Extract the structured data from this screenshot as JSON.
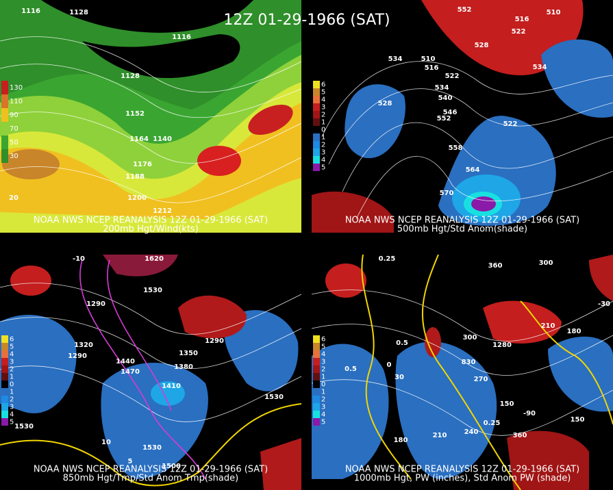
{
  "title": "12Z 01-29-1966 (SAT)",
  "panels": [
    {
      "source": "NOAA NWS NCEP REANALYSIS 12Z 01-29-1966 (SAT)",
      "caption": "200mb Hgt/Wind(kts)",
      "scale": [
        "130",
        "110",
        "90",
        "70",
        "50",
        "30"
      ],
      "labels": [
        "1116",
        "1128",
        "1116",
        "1128",
        "1152",
        "1164",
        "1140",
        "1176",
        "1188",
        "1200",
        "1212",
        "20"
      ]
    },
    {
      "source": "NOAA NWS NCEP REANALYSIS 12Z 01-29-1966 (SAT)",
      "caption": "500mb Hgt/Std Anom(shade)",
      "scale": [
        "6",
        "5",
        "4",
        "3",
        "2",
        "1",
        "0",
        "1",
        "2",
        "3",
        "4",
        "5"
      ],
      "labels": [
        "552",
        "516",
        "510",
        "534",
        "510",
        "516",
        "522",
        "528",
        "522",
        "534",
        "534",
        "540",
        "528",
        "546",
        "552",
        "558",
        "564",
        "570",
        "522"
      ]
    },
    {
      "source": "NOAA NWS NCEP REANALYSIS 12Z 01-29-1966 (SAT)",
      "caption": "850mb Hgt/Tmp/Std Anom Tmp(shade)",
      "scale": [
        "6",
        "5",
        "4",
        "3",
        "2",
        "1",
        "0",
        "1",
        "2",
        "3",
        "4",
        "5"
      ],
      "labels": [
        "1620",
        "1530",
        "1290",
        "1320",
        "1290",
        "1440",
        "1470",
        "1380",
        "1350",
        "1290",
        "1410",
        "1530",
        "1530",
        "1530",
        "1500",
        "-10",
        "10",
        "5"
      ]
    },
    {
      "source": "NOAA NWS NCEP REANALYSIS 12Z 01-29-1966 (SAT)",
      "caption": "1000mb Hgt, PW (inches), Std Anom PW (shade)",
      "scale": [
        "6",
        "5",
        "4",
        "3",
        "2",
        "1",
        "0",
        "1",
        "2",
        "3",
        "4",
        "5"
      ],
      "labels": [
        "0.25",
        "300",
        "360",
        "300",
        "830",
        "270",
        "0.5",
        "0.5",
        "0",
        "30",
        "150",
        "-90",
        "0.25",
        "180",
        "210",
        "240",
        "360",
        "150",
        "-30",
        "210",
        "180",
        "1280"
      ]
    }
  ]
}
